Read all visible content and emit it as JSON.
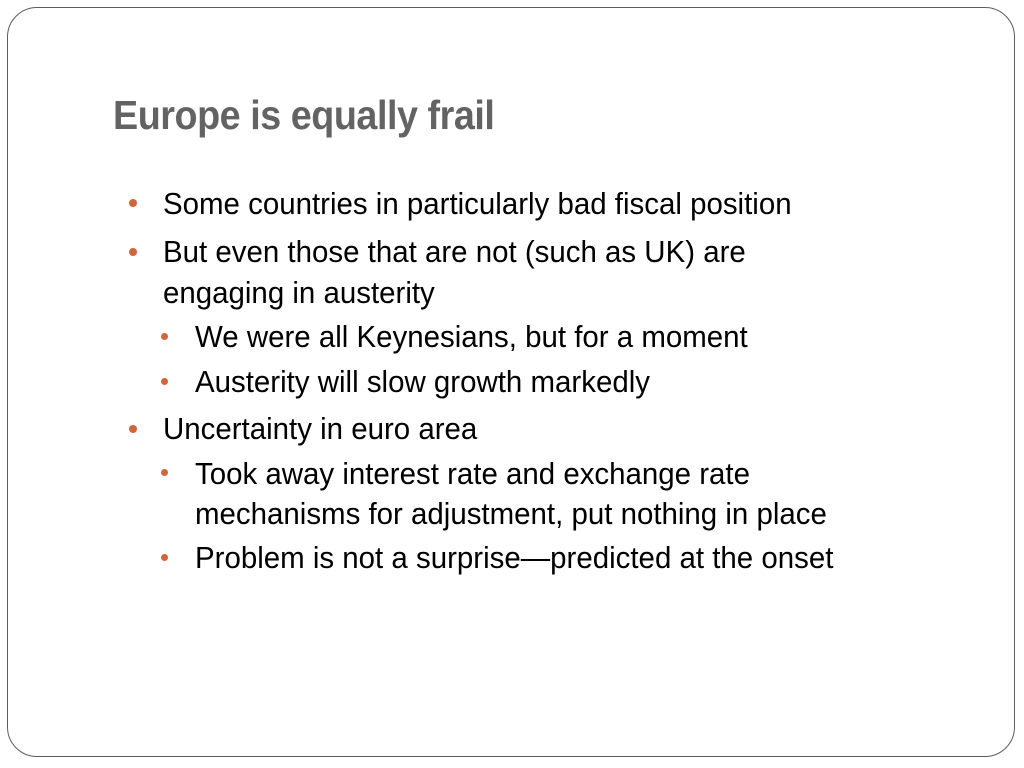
{
  "slide": {
    "title": "Europe is equally frail",
    "accent_color": "#d1653a",
    "bullets": [
      {
        "level": 1,
        "lines": [
          "Some countries in particularly bad fiscal position"
        ]
      },
      {
        "level": 1,
        "lines": [
          "But even those that are not (such as UK) are",
          "engaging in austerity"
        ]
      },
      {
        "level": 2,
        "lines": [
          "We were all Keynesians, but for a moment"
        ]
      },
      {
        "level": 2,
        "lines": [
          "Austerity will slow growth markedly"
        ]
      },
      {
        "level": 1,
        "lines": [
          "Uncertainty in euro area"
        ]
      },
      {
        "level": 2,
        "lines": [
          "Took away interest rate and exchange rate",
          "mechanisms for adjustment, put nothing in place"
        ]
      },
      {
        "level": 2,
        "lines": [
          "Problem is not a surprise—predicted at the onset"
        ]
      }
    ]
  }
}
